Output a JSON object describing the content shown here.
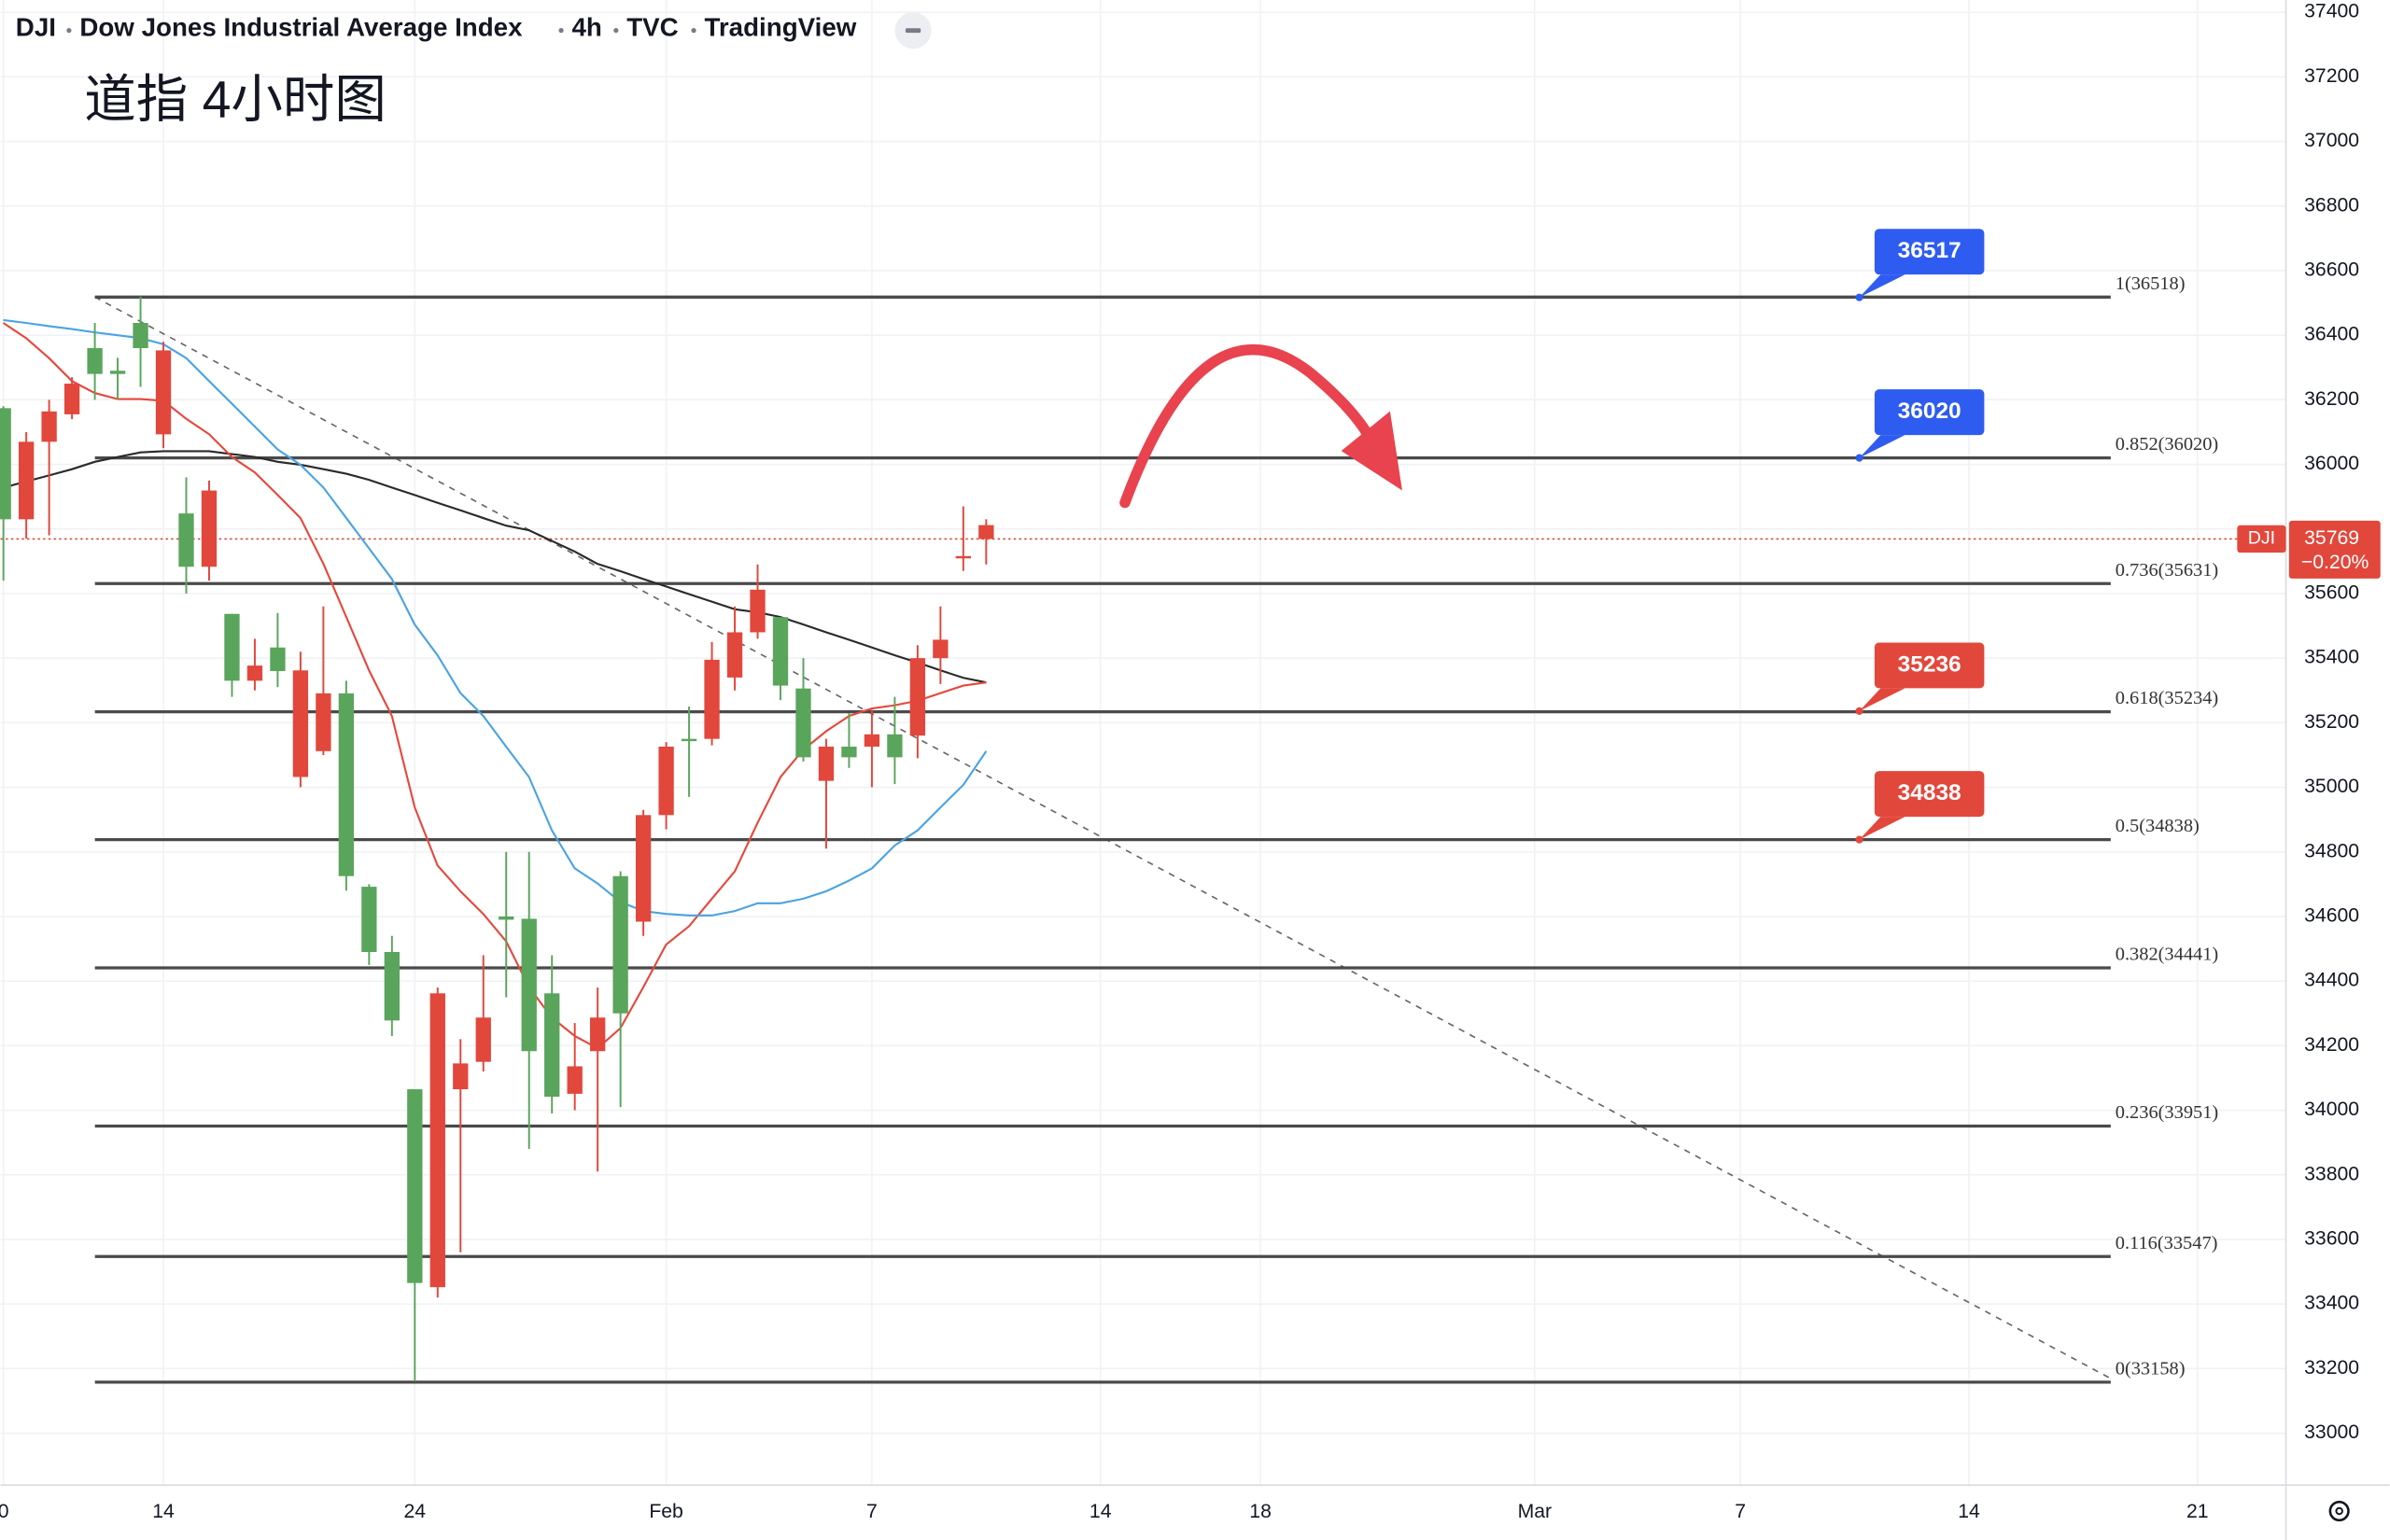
{
  "header": {
    "symbol": "DJI",
    "name": "Dow Jones Industrial Average Index",
    "interval": "4h",
    "exchange": "TVC",
    "source": "TradingView"
  },
  "chart_data": {
    "type": "candlestick",
    "title": "道指 4小时图",
    "up_color": "#5aa55c",
    "down_color": "#e2473c",
    "open": [
      35830,
      36070,
      36164,
      36250,
      36280,
      36280,
      36360,
      36353,
      35683,
      35919,
      35330,
      35377,
      35360,
      35362,
      35291,
      34725,
      34490,
      34278,
      33465,
      34362,
      34145,
      34287,
      34590,
      34183,
      34042,
      34136,
      34287,
      34300,
      34914,
      35126,
      35145,
      35395,
      35480,
      35612,
      35315,
      35093,
      35126,
      35093,
      35164,
      35093,
      35400,
      35457,
      35716,
      35812
    ],
    "high": [
      36180,
      36100,
      36200,
      36270,
      36438,
      36330,
      36520,
      36380,
      35960,
      35950,
      35537,
      35460,
      35540,
      35420,
      35560,
      35330,
      34700,
      34540,
      34065,
      34380,
      34220,
      34480,
      34800,
      34800,
      34480,
      34270,
      34380,
      34740,
      34930,
      35140,
      35250,
      35450,
      35560,
      35690,
      35527,
      35400,
      35150,
      35230,
      35240,
      35280,
      35440,
      35560,
      35870,
      35830
    ],
    "low": [
      35640,
      35770,
      35780,
      36140,
      36200,
      36200,
      36240,
      36050,
      35600,
      35640,
      35280,
      35300,
      35310,
      35000,
      35100,
      34680,
      34450,
      34230,
      33160,
      33420,
      33560,
      34120,
      34350,
      33880,
      33990,
      34000,
      33810,
      34010,
      34540,
      34870,
      34970,
      35130,
      35300,
      35460,
      35270,
      35080,
      34810,
      35060,
      35000,
      35010,
      35090,
      35320,
      35670,
      35690
    ],
    "close": [
      36174,
      35830,
      36070,
      36155,
      36360,
      36290,
      36438,
      36093,
      35848,
      35683,
      35537,
      35330,
      35433,
      35032,
      35112,
      35291,
      34692,
      34490,
      34065,
      33452,
      34065,
      34150,
      34600,
      34593,
      34362,
      34051,
      34183,
      34725,
      34584,
      34914,
      35150,
      35150,
      35340,
      35480,
      35527,
      35306,
      35020,
      35126,
      35126,
      35164,
      35160,
      35400,
      35710,
      35769
    ],
    "series": [
      {
        "color": "#2a2a2a",
        "values": [
          35928,
          35947,
          35966,
          35985,
          36008,
          36023,
          36037,
          36041,
          36041,
          36041,
          36032,
          36023,
          36008,
          35999,
          35985,
          35971,
          35952,
          35928,
          35905,
          35881,
          35858,
          35834,
          35810,
          35796,
          35763,
          35730,
          35692,
          35669,
          35645,
          35622,
          35598,
          35575,
          35551,
          35542,
          35527,
          35504,
          35480,
          35457,
          35433,
          35409,
          35386,
          35362,
          35339,
          35325
        ]
      },
      {
        "color": "#e5483c",
        "values": [
          36438,
          36391,
          36329,
          36258,
          36221,
          36202,
          36202,
          36197,
          36141,
          36093,
          36023,
          35975,
          35905,
          35834,
          35692,
          35527,
          35362,
          35221,
          34938,
          34758,
          34678,
          34608,
          34523,
          34381,
          34287,
          34230,
          34192,
          34254,
          34381,
          34513,
          34570,
          34655,
          34740,
          34891,
          35032,
          35117,
          35174,
          35221,
          35244,
          35254,
          35268,
          35292,
          35315,
          35325
        ]
      },
      {
        "color": "#4aa3e0",
        "values": [
          36447,
          36438,
          36428,
          36419,
          36409,
          36400,
          36391,
          36372,
          36329,
          36258,
          36188,
          36117,
          36046,
          35999,
          35928,
          35834,
          35740,
          35645,
          35504,
          35409,
          35292,
          35221,
          35126,
          35032,
          34867,
          34749,
          34702,
          34645,
          34617,
          34608,
          34603,
          34603,
          34617,
          34641,
          34641,
          34655,
          34678,
          34711,
          34749,
          34820,
          34867,
          34938,
          35008,
          35112
        ]
      }
    ],
    "fib_levels": [
      {
        "value": 36518,
        "label": "1(36518)"
      },
      {
        "value": 36020,
        "label": "0.852(36020)"
      },
      {
        "value": 35631,
        "label": "0.736(35631)"
      },
      {
        "value": 35234,
        "label": "0.618(35234)"
      },
      {
        "value": 34838,
        "label": "0.5(34838)"
      },
      {
        "value": 34441,
        "label": "0.382(34441)"
      },
      {
        "value": 33951,
        "label": "0.236(33951)"
      },
      {
        "value": 33547,
        "label": "0.116(33547)"
      },
      {
        "value": 33158,
        "label": "0(33158)"
      }
    ],
    "callouts": [
      {
        "value": 36517,
        "color": "#2f5cf0"
      },
      {
        "value": 36020,
        "color": "#2f5cf0"
      },
      {
        "value": 35236,
        "color": "#e2473c"
      },
      {
        "value": 34838,
        "color": "#e2473c"
      }
    ],
    "last_price": 35769,
    "change": {
      "value": -0.2,
      "label": "−0.20%"
    },
    "price_tag": "DJI",
    "ylim": [
      32839,
      37438
    ],
    "yticks": [
      33000,
      33200,
      33400,
      33600,
      33800,
      34000,
      34200,
      34400,
      34600,
      34800,
      35000,
      35200,
      35400,
      35600,
      35800,
      36000,
      36200,
      36400,
      36600,
      36800,
      37000,
      37200,
      37400
    ],
    "xlim": [
      -0.13,
      99.87
    ],
    "xticks": [
      0,
      {
        "value": 7,
        "label": "14"
      },
      {
        "value": 18,
        "label": "24"
      },
      {
        "value": 29,
        "label": "Feb"
      },
      {
        "value": 38,
        "label": "7"
      },
      {
        "value": 48,
        "label": "14"
      },
      {
        "value": 55,
        "label": "18"
      },
      {
        "value": 67,
        "label": "Mar"
      },
      {
        "value": 76,
        "label": "7"
      },
      {
        "value": 86,
        "label": "14"
      },
      {
        "value": 96,
        "label": "21"
      }
    ],
    "grid": true
  }
}
